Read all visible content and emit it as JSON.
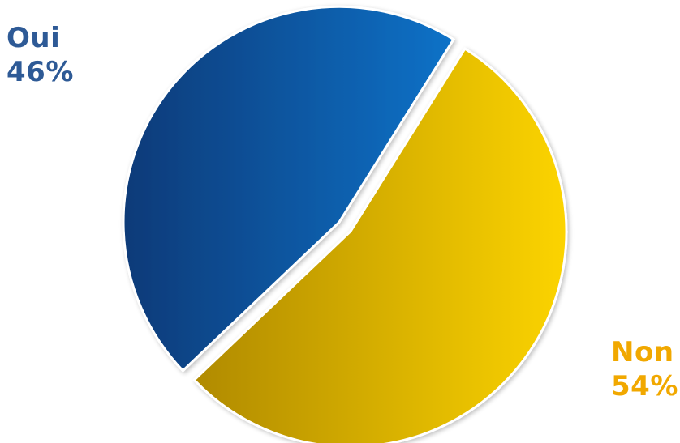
{
  "chart_data": {
    "type": "pie",
    "slices": [
      {
        "name": "Oui",
        "value": 46,
        "label": "46%",
        "color_dark": "#0a3a78",
        "color_light": "#0a72c8",
        "text_color": "#2e5a96"
      },
      {
        "name": "Non",
        "value": 54,
        "label": "54%",
        "color_dark": "#b08a00",
        "color_light": "#fcd400",
        "text_color": "#f1a800"
      }
    ],
    "legend": "none"
  }
}
